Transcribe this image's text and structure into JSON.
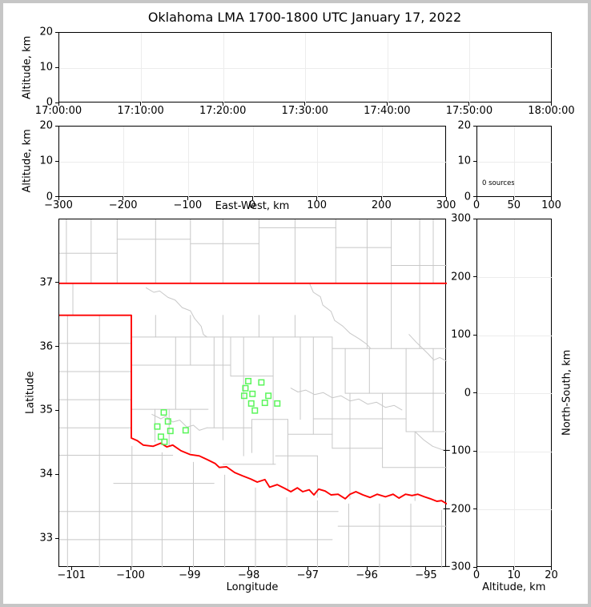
{
  "title": "Oklahoma LMA 1700-1800 UTC January 17, 2022",
  "colors": {
    "state_border": "#fe0000",
    "county_line": "#c8c8c8",
    "source_marker": "#5af55a",
    "grid_line": "#ececec",
    "axis": "#000000",
    "figure_frame": "#c6c6c6",
    "background": "#ffffff"
  },
  "panels": {
    "time_height": {
      "ylabel": "Altitude, km",
      "ytick_labels": [
        "0",
        "10",
        "20"
      ],
      "xtick_labels": [
        "17:00:00",
        "17:10:00",
        "17:20:00",
        "17:30:00",
        "17:40:00",
        "17:50:00",
        "18:00:00"
      ]
    },
    "east_west_height": {
      "ylabel": "Altitude, km",
      "xlabel": "East-West, km",
      "ytick_labels": [
        "0",
        "10",
        "20"
      ],
      "xtick_labels": [
        "−300",
        "−200",
        "−100",
        "0",
        "100",
        "200",
        "300"
      ]
    },
    "source_histogram": {
      "annotation": "0 sources",
      "ytick_labels": [
        "0",
        "10",
        "20"
      ],
      "xtick_labels": [
        "0",
        "50",
        "100"
      ]
    },
    "map": {
      "xlabel": "Longitude",
      "ylabel": "Latitude",
      "xtick_labels": [
        "−101",
        "−100",
        "−99",
        "−98",
        "−97",
        "−96",
        "−95"
      ],
      "xtick_values": [
        -101,
        -100,
        -99,
        -98,
        -97,
        -96,
        -95
      ],
      "ytick_labels": [
        "37",
        "36",
        "35",
        "34",
        "33"
      ],
      "ytick_values": [
        37,
        36,
        35,
        34,
        33
      ],
      "lon_range": [
        -101.22,
        -94.66
      ],
      "lat_range": [
        32.55,
        38.0
      ]
    },
    "north_south_height": {
      "xlabel": "Altitude, km",
      "ylabel": "North-South, km",
      "xtick_labels": [
        "0",
        "10",
        "20"
      ],
      "ytick_labels": [
        "300",
        "200",
        "100",
        "0",
        "−100",
        "−200",
        "−300"
      ]
    }
  },
  "chart_data": [
    {
      "type": "scatter",
      "name": "altitude-vs-time",
      "title": "Oklahoma LMA 1700-1800 UTC January 17, 2022",
      "ylabel": "Altitude, km",
      "xticks": [
        "17:00:00",
        "17:10:00",
        "17:20:00",
        "17:30:00",
        "17:40:00",
        "17:50:00",
        "18:00:00"
      ],
      "ylim": [
        0,
        20
      ],
      "yticks": [
        0,
        10,
        20
      ],
      "points": []
    },
    {
      "type": "scatter",
      "name": "altitude-vs-east-west",
      "xlabel": "East-West, km",
      "ylabel": "Altitude, km",
      "xlim": [
        -300,
        300
      ],
      "xticks": [
        -300,
        -200,
        -100,
        0,
        100,
        200,
        300
      ],
      "ylim": [
        0,
        20
      ],
      "yticks": [
        0,
        10,
        20
      ],
      "points": []
    },
    {
      "type": "histogram",
      "name": "altitude-source-histogram",
      "annotation": "0 sources",
      "xlim": [
        0,
        100
      ],
      "xticks": [
        0,
        50,
        100
      ],
      "ylim": [
        0,
        20
      ],
      "yticks": [
        0,
        10,
        20
      ],
      "values": []
    },
    {
      "type": "scatter",
      "name": "plan-view-map",
      "xlabel": "Longitude",
      "ylabel": "Latitude",
      "xlim": [
        -101.22,
        -94.66
      ],
      "ylim": [
        32.55,
        38.0
      ],
      "xticks": [
        -101,
        -100,
        -99,
        -98,
        -97,
        -96,
        -95
      ],
      "yticks": [
        33,
        34,
        35,
        36,
        37
      ],
      "marker": "open-square",
      "marker_color": "#5af55a",
      "points_lon_lat": [
        [
          -98.02,
          35.47
        ],
        [
          -97.8,
          35.45
        ],
        [
          -98.07,
          35.36
        ],
        [
          -97.95,
          35.27
        ],
        [
          -98.09,
          35.24
        ],
        [
          -97.68,
          35.24
        ],
        [
          -97.74,
          35.13
        ],
        [
          -97.97,
          35.12
        ],
        [
          -97.53,
          35.12
        ],
        [
          -97.91,
          35.01
        ],
        [
          -99.45,
          34.98
        ],
        [
          -99.38,
          34.84
        ],
        [
          -99.56,
          34.76
        ],
        [
          -99.34,
          34.69
        ],
        [
          -99.08,
          34.7
        ],
        [
          -99.5,
          34.6
        ],
        [
          -99.44,
          34.52
        ]
      ]
    },
    {
      "type": "scatter",
      "name": "north-south-vs-altitude",
      "xlabel": "Altitude, km",
      "ylabel": "North-South, km",
      "xlim": [
        0,
        20
      ],
      "xticks": [
        0,
        10,
        20
      ],
      "ylim": [
        -300,
        300
      ],
      "yticks": [
        -300,
        -200,
        -100,
        0,
        100,
        200,
        300
      ],
      "points": []
    }
  ],
  "map_layers": {
    "state_border": {
      "kansas_line": [
        -101.22,
        37.0,
        -94.66,
        37.0
      ],
      "panhandle_and_red_river": [
        -101.22,
        36.5,
        -100.0,
        36.5,
        -100.0,
        34.58,
        -99.9,
        34.54,
        -99.8,
        34.47,
        -99.63,
        34.45,
        -99.5,
        34.5,
        -99.4,
        34.44,
        -99.3,
        34.47,
        -99.16,
        34.38,
        -99.0,
        34.32,
        -98.85,
        34.3,
        -98.71,
        34.24,
        -98.58,
        34.18,
        -98.51,
        34.12,
        -98.39,
        34.13,
        -98.25,
        34.04,
        -98.12,
        33.99,
        -97.98,
        33.94,
        -97.87,
        33.89,
        -97.74,
        33.93,
        -97.66,
        33.81,
        -97.53,
        33.85,
        -97.4,
        33.79,
        -97.3,
        33.74,
        -97.19,
        33.8,
        -97.1,
        33.74,
        -96.99,
        33.77,
        -96.91,
        33.69,
        -96.83,
        33.78,
        -96.72,
        33.75,
        -96.62,
        33.69,
        -96.5,
        33.7,
        -96.38,
        33.63,
        -96.3,
        33.7,
        -96.2,
        33.74,
        -96.08,
        33.69,
        -95.96,
        33.65,
        -95.84,
        33.7,
        -95.7,
        33.66,
        -95.57,
        33.7,
        -95.47,
        33.64,
        -95.36,
        33.7,
        -95.25,
        33.68,
        -95.15,
        33.7,
        -95.04,
        33.66,
        -94.94,
        33.63,
        -94.83,
        33.59,
        -94.75,
        33.6,
        -94.66,
        33.55
      ]
    },
    "county_lines": [
      [
        -101.1,
        37,
        -101.1,
        38.0
      ],
      [
        -100.68,
        37,
        -100.68,
        38.0
      ],
      [
        -100.24,
        37,
        -100.24,
        38.0
      ],
      [
        -99.59,
        37,
        -99.59,
        38.0
      ],
      [
        -99.0,
        37,
        -99.0,
        38.0
      ],
      [
        -98.45,
        37,
        -98.45,
        38.0
      ],
      [
        -97.84,
        37,
        -97.84,
        38.0
      ],
      [
        -97.23,
        37,
        -97.23,
        38.0
      ],
      [
        -96.54,
        37,
        -96.54,
        38.0
      ],
      [
        -96.01,
        37,
        -96.01,
        38.0
      ],
      [
        -95.6,
        37,
        -95.6,
        38.0
      ],
      [
        -95.12,
        37,
        -95.12,
        38.0
      ],
      [
        -94.89,
        37,
        -94.89,
        38.0
      ],
      [
        -101.22,
        37.47,
        -100.24,
        37.47
      ],
      [
        -100.24,
        37.69,
        -99.0,
        37.69
      ],
      [
        -99.0,
        37.62,
        -97.84,
        37.62
      ],
      [
        -97.84,
        37.87,
        -96.54,
        37.87
      ],
      [
        -96.54,
        37.56,
        -95.6,
        37.56
      ],
      [
        -95.6,
        37.28,
        -94.66,
        37.28
      ],
      [
        -100.99,
        37,
        -100.99,
        36.5
      ],
      [
        -100.54,
        36.5,
        -100.54,
        32.55
      ],
      [
        -101.08,
        36.5,
        -101.08,
        32.55
      ],
      [
        -101.22,
        36.06,
        -100.0,
        36.06
      ],
      [
        -101.22,
        35.62,
        -100.0,
        35.62
      ],
      [
        -101.22,
        35.18,
        -100.0,
        35.18
      ],
      [
        -101.22,
        34.74,
        -100.0,
        34.74
      ],
      [
        -101.22,
        34.31,
        -99.3,
        34.31
      ],
      [
        -100.3,
        33.87,
        -98.6,
        33.87
      ],
      [
        -101.22,
        33.43,
        -96.5,
        33.43
      ],
      [
        -101.22,
        32.99,
        -96.6,
        32.99
      ],
      [
        -96.5,
        33.2,
        -94.66,
        33.2
      ],
      [
        -99.99,
        34.45,
        -99.99,
        32.55
      ],
      [
        -99.48,
        34.35,
        -99.48,
        32.55
      ],
      [
        -98.95,
        34.2,
        -98.95,
        32.55
      ],
      [
        -98.42,
        34.0,
        -98.42,
        32.55
      ],
      [
        -97.9,
        33.8,
        -97.9,
        32.55
      ],
      [
        -97.37,
        33.65,
        -97.37,
        32.55
      ],
      [
        -96.85,
        33.6,
        -96.85,
        32.55
      ],
      [
        -96.32,
        33.55,
        -96.32,
        32.55
      ],
      [
        -95.8,
        33.55,
        -95.8,
        32.55
      ],
      [
        -95.27,
        33.55,
        -95.27,
        32.55
      ],
      [
        -94.75,
        33.45,
        -94.75,
        32.55
      ],
      [
        -100.0,
        36.16,
        -96.6,
        36.16
      ],
      [
        -96.6,
        35.98,
        -94.66,
        35.98
      ],
      [
        -100.0,
        35.72,
        -98.32,
        35.72
      ],
      [
        -98.32,
        35.55,
        -97.6,
        35.55
      ],
      [
        -100.0,
        35.03,
        -98.7,
        35.03
      ],
      [
        -98.72,
        34.74,
        -97.96,
        34.74
      ],
      [
        -97.96,
        34.87,
        -97.35,
        34.87
      ],
      [
        -97.35,
        34.64,
        -96.6,
        34.64
      ],
      [
        -98.45,
        34.17,
        -97.56,
        34.17
      ],
      [
        -97.56,
        34.3,
        -96.85,
        34.3
      ],
      [
        -96.6,
        34.42,
        -95.75,
        34.42
      ],
      [
        -96.38,
        35.28,
        -94.66,
        35.28
      ],
      [
        -96.92,
        34.88,
        -95.35,
        34.88
      ],
      [
        -95.35,
        34.68,
        -94.66,
        34.68
      ],
      [
        -95.75,
        34.12,
        -94.66,
        34.12
      ],
      [
        -99.59,
        36.5,
        -99.59,
        36.16
      ],
      [
        -99.25,
        36.16,
        -99.25,
        35.03
      ],
      [
        -99.36,
        35.03,
        -99.36,
        34.45
      ],
      [
        -99.6,
        35.03,
        -99.6,
        34.52
      ],
      [
        -99.0,
        36.5,
        -99.0,
        35.72
      ],
      [
        -99.0,
        35.03,
        -99.0,
        34.35
      ],
      [
        -98.6,
        36.16,
        -98.6,
        34.74
      ],
      [
        -98.45,
        36.5,
        -98.45,
        34.55
      ],
      [
        -98.32,
        36.16,
        -98.32,
        35.55
      ],
      [
        -98.1,
        36.16,
        -98.1,
        34.3
      ],
      [
        -97.84,
        36.5,
        -97.84,
        36.16
      ],
      [
        -97.6,
        36.16,
        -97.6,
        34.17
      ],
      [
        -97.96,
        34.87,
        -97.96,
        34.35
      ],
      [
        -97.35,
        34.87,
        -97.35,
        33.78
      ],
      [
        -97.23,
        36.5,
        -97.23,
        36.16
      ],
      [
        -97.14,
        36.16,
        -97.14,
        34.87
      ],
      [
        -96.92,
        36.16,
        -96.92,
        34.64
      ],
      [
        -96.6,
        36.16,
        -96.6,
        34.42
      ],
      [
        -96.38,
        35.98,
        -96.38,
        35.28
      ],
      [
        -96.3,
        35.28,
        -96.3,
        33.63
      ],
      [
        -96.01,
        37.0,
        -96.01,
        35.98
      ],
      [
        -95.97,
        35.98,
        -95.97,
        35.28
      ],
      [
        -95.75,
        35.28,
        -95.75,
        34.12
      ],
      [
        -95.6,
        37.0,
        -95.6,
        35.98
      ],
      [
        -95.35,
        35.98,
        -95.35,
        34.68
      ],
      [
        -95.2,
        34.68,
        -95.2,
        33.6
      ],
      [
        -95.12,
        37.0,
        -95.12,
        35.98
      ],
      [
        -94.89,
        35.98,
        -94.89,
        34.68
      ],
      [
        -96.85,
        34.3,
        -96.85,
        33.65
      ],
      [
        -99.75,
        36.93,
        -99.62,
        36.86,
        -99.52,
        36.88,
        -99.38,
        36.78,
        -99.26,
        36.74,
        -99.14,
        36.62,
        -99.0,
        36.57,
        -98.93,
        36.45,
        -98.82,
        36.33,
        -98.78,
        36.2,
        -98.72,
        36.16
      ],
      [
        -96.98,
        36.99,
        -96.92,
        36.86,
        -96.8,
        36.79,
        -96.76,
        36.66,
        -96.62,
        36.56,
        -96.56,
        36.42,
        -96.42,
        36.33,
        -96.3,
        36.22,
        -96.14,
        36.13,
        -96.02,
        36.05,
        -95.95,
        35.98
      ],
      [
        -97.3,
        35.36,
        -97.18,
        35.3,
        -97.05,
        35.33,
        -96.9,
        35.26,
        -96.75,
        35.29,
        -96.6,
        35.21,
        -96.45,
        35.24,
        -96.3,
        35.16,
        -96.15,
        35.19,
        -96.0,
        35.11,
        -95.85,
        35.14,
        -95.7,
        35.06,
        -95.55,
        35.09,
        -95.42,
        35.02
      ],
      [
        -99.65,
        34.95,
        -99.5,
        34.88,
        -99.42,
        34.92,
        -99.3,
        34.83,
        -99.18,
        34.86,
        -99.06,
        34.75,
        -98.95,
        34.78,
        -98.85,
        34.7,
        -98.72,
        34.74
      ],
      [
        -95.3,
        36.2,
        -95.18,
        36.08,
        -95.08,
        35.99,
        -94.98,
        35.9,
        -94.88,
        35.8,
        -94.78,
        35.84,
        -94.66,
        35.78
      ],
      [
        -95.2,
        34.68,
        -95.05,
        34.55,
        -94.9,
        34.45,
        -94.75,
        34.4,
        -94.66,
        34.38
      ]
    ]
  }
}
